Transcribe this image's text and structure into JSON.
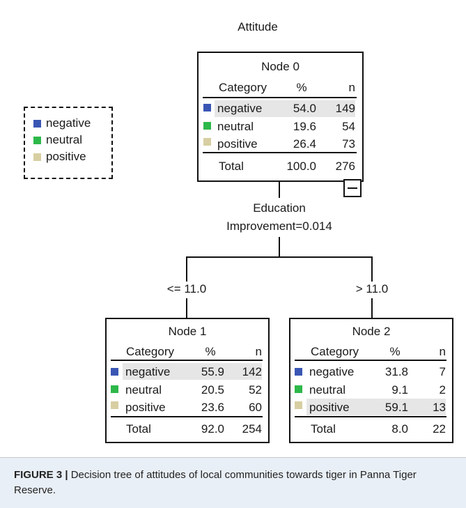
{
  "title": "Attitude",
  "colors": {
    "negative": "#3a56b4",
    "neutral": "#2db84a",
    "positive": "#d7cfa2",
    "highlight": "#e6e6e6",
    "caption_bg": "#e9eff6"
  },
  "legend": [
    "negative",
    "neutral",
    "positive"
  ],
  "split": {
    "variable": "Education",
    "improvement": "Improvement=0.014",
    "left_condition": "<= 11.0",
    "right_condition": "> 11.0"
  },
  "headers": {
    "category": "Category",
    "percent": "%",
    "n": "n"
  },
  "nodes": [
    {
      "title": "Node 0",
      "rows": [
        {
          "category": "negative",
          "percent": "54.0",
          "n": "149"
        },
        {
          "category": "neutral",
          "percent": "19.6",
          "n": "54"
        },
        {
          "category": "positive",
          "percent": "26.4",
          "n": "73"
        }
      ],
      "total": {
        "label": "Total",
        "percent": "100.0",
        "n": "276"
      },
      "highlight_row": 0
    },
    {
      "title": "Node 1",
      "rows": [
        {
          "category": "negative",
          "percent": "55.9",
          "n": "142"
        },
        {
          "category": "neutral",
          "percent": "20.5",
          "n": "52"
        },
        {
          "category": "positive",
          "percent": "23.6",
          "n": "60"
        }
      ],
      "total": {
        "label": "Total",
        "percent": "92.0",
        "n": "254"
      },
      "highlight_row": 0
    },
    {
      "title": "Node 2",
      "rows": [
        {
          "category": "negative",
          "percent": "31.8",
          "n": "7"
        },
        {
          "category": "neutral",
          "percent": "9.1",
          "n": "2"
        },
        {
          "category": "positive",
          "percent": "59.1",
          "n": "13"
        }
      ],
      "total": {
        "label": "Total",
        "percent": "8.0",
        "n": "22"
      },
      "highlight_row": 2
    }
  ],
  "caption": {
    "label": "FIGURE 3 |",
    "text": " Decision tree of attitudes of local communities towards tiger in Panna Tiger Reserve."
  }
}
